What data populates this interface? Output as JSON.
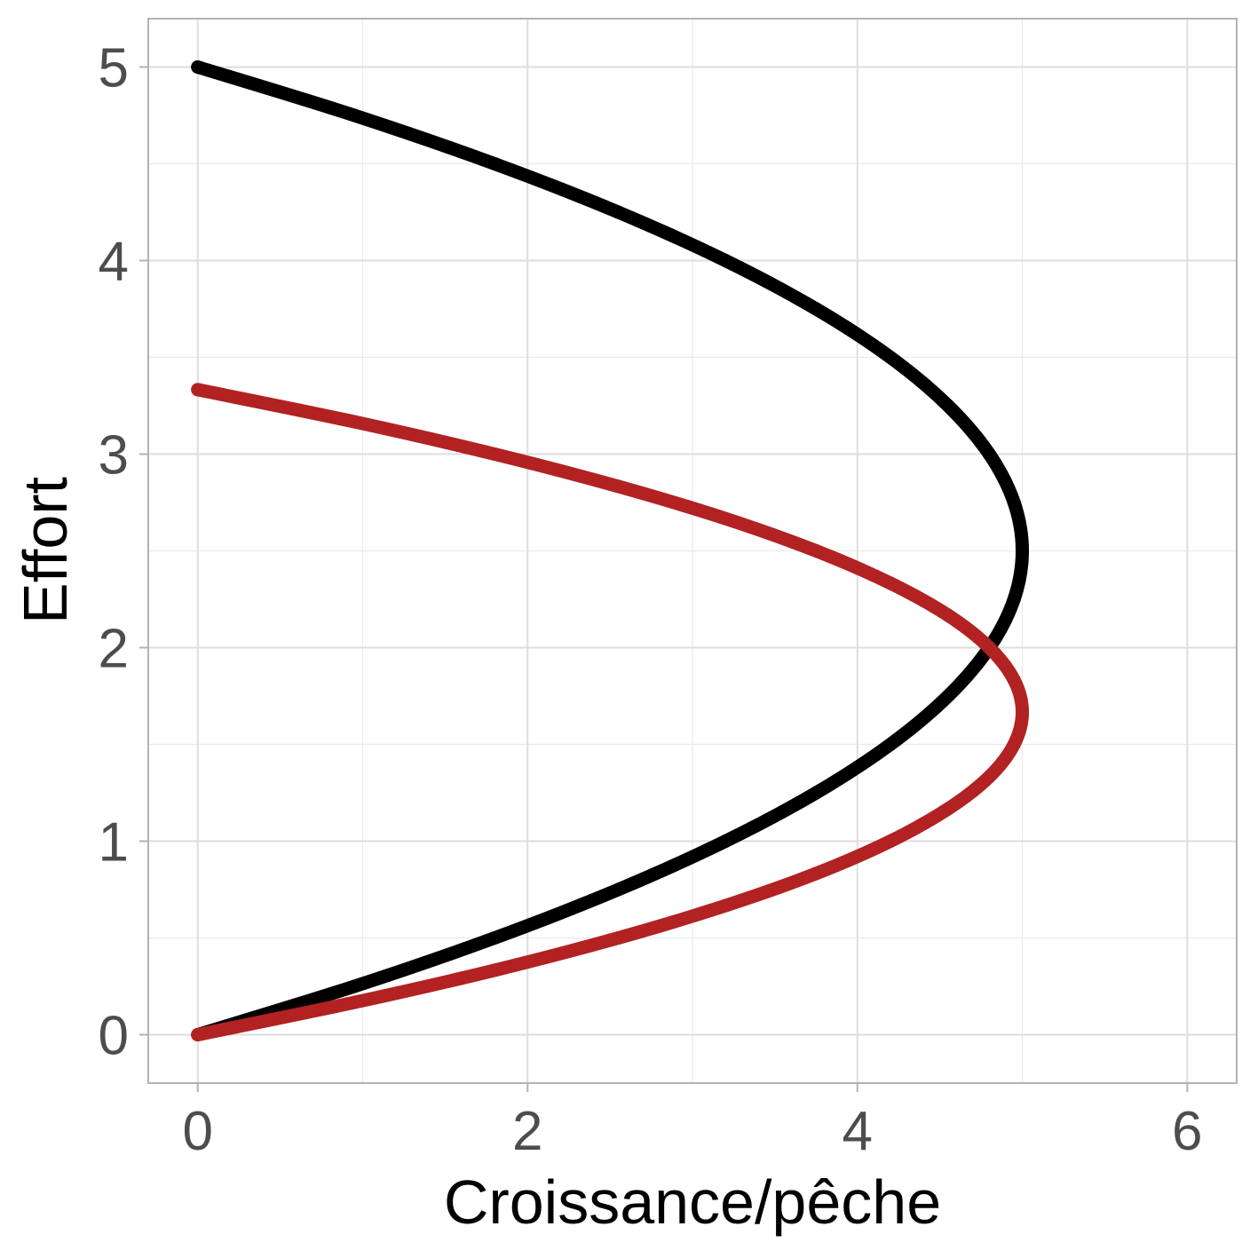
{
  "chart_data": {
    "type": "scatter",
    "title": "",
    "xlabel": "Croissance/pêche",
    "ylabel": "Effort",
    "xlim": [
      -0.3,
      6.3
    ],
    "ylim": [
      -0.25,
      5.25
    ],
    "xticks": [
      0,
      2,
      4,
      6
    ],
    "yticks": [
      0,
      1,
      2,
      3,
      4,
      5
    ],
    "x_tick_labels": [
      "0",
      "2",
      "4",
      "6"
    ],
    "y_tick_labels": [
      "0",
      "1",
      "2",
      "3",
      "4",
      "5"
    ],
    "grid": true,
    "legend": "none",
    "series": [
      {
        "color": "#000000",
        "x": [
          0,
          0.95,
          1.8,
          2.55,
          3.2,
          3.75,
          4.2,
          4.55,
          4.8,
          4.95,
          5.0,
          4.95,
          4.8,
          4.55,
          4.2,
          3.75,
          3.2,
          2.55,
          1.8,
          0.95,
          0
        ],
        "y": [
          0,
          0.25,
          0.5,
          0.75,
          1.0,
          1.25,
          1.5,
          1.75,
          2.0,
          2.25,
          2.5,
          2.75,
          3.0,
          3.25,
          3.5,
          3.75,
          4.0,
          4.25,
          4.5,
          4.75,
          5.0
        ]
      },
      {
        "color": "#b22222",
        "x": [
          0,
          0.95,
          1.8,
          2.55,
          3.2,
          3.75,
          4.2,
          4.55,
          4.8,
          4.95,
          5.0,
          4.95,
          4.8,
          4.55,
          4.2,
          3.75,
          3.2,
          2.55,
          1.8,
          0.95,
          0
        ],
        "y": [
          0,
          0.167,
          0.333,
          0.5,
          0.667,
          0.833,
          1.0,
          1.167,
          1.333,
          1.5,
          1.667,
          1.833,
          2.0,
          2.167,
          2.333,
          2.5,
          2.667,
          2.833,
          3.0,
          3.167,
          3.333
        ]
      }
    ]
  }
}
